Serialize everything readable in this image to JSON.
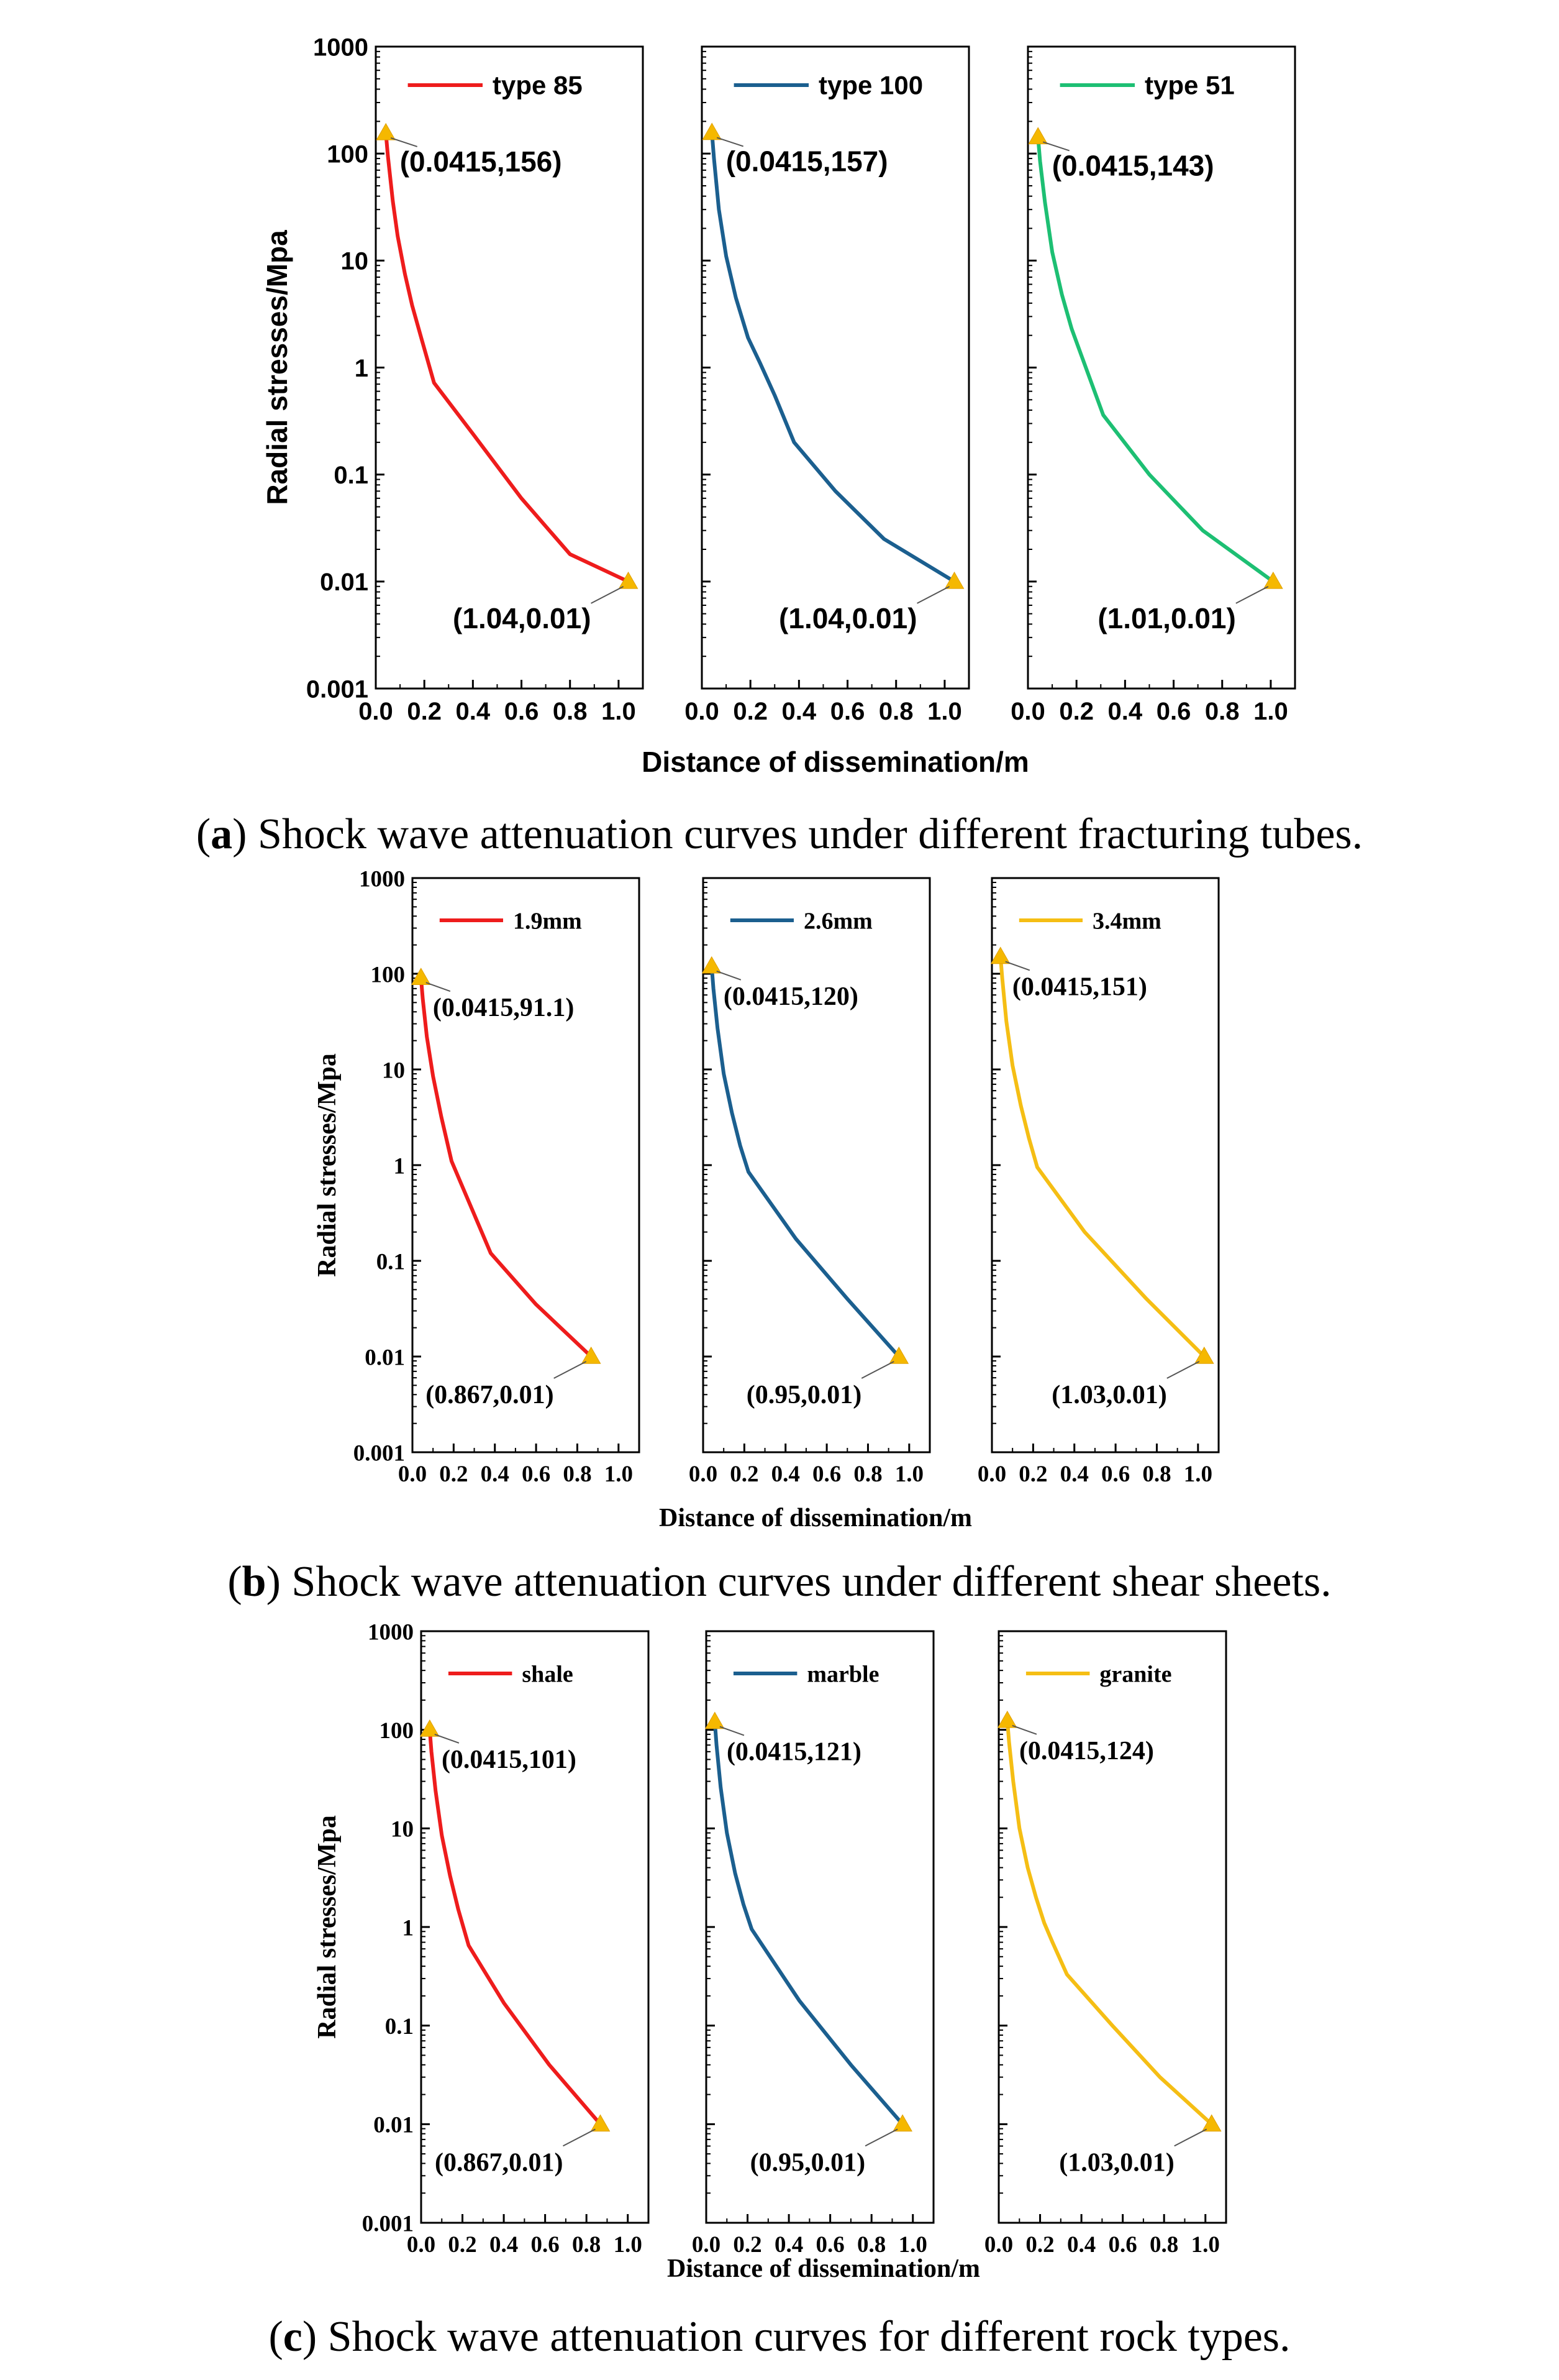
{
  "chart_data": [
    {
      "id": "a",
      "type": "line",
      "yscale": "log",
      "ylabel": "Radial stresses/Mpa",
      "xlabel": "Distance of dissemination/m",
      "xlim": [
        0,
        1.1
      ],
      "ylim": [
        0.001,
        1000
      ],
      "xticks": [
        "0.0",
        "0.2",
        "0.4",
        "0.6",
        "0.8",
        "1.0"
      ],
      "yticks": [
        "0.001",
        "0.01",
        "0.1",
        "1",
        "10",
        "100",
        "1000"
      ],
      "caption": {
        "letter": "a",
        "text": " Shock wave attenuation curves under different fracturing tubes."
      },
      "panels": [
        {
          "series_name": "type 85",
          "color": "#ee1c1c",
          "points": [
            [
              0.0415,
              156
            ],
            [
              0.05,
              95
            ],
            [
              0.07,
              36
            ],
            [
              0.09,
              17
            ],
            [
              0.12,
              7.5
            ],
            [
              0.15,
              3.8
            ],
            [
              0.19,
              1.8
            ],
            [
              0.24,
              0.72
            ],
            [
              0.4,
              0.24
            ],
            [
              0.6,
              0.06
            ],
            [
              0.8,
              0.018
            ],
            [
              1.04,
              0.01
            ]
          ],
          "start": [
            0.0415,
            156
          ],
          "end": [
            1.04,
            0.01
          ],
          "start_label": "(0.0415,156)",
          "end_label": "(1.04,0.01)"
        },
        {
          "series_name": "type 100",
          "color": "#1b5f8f",
          "points": [
            [
              0.0415,
              157
            ],
            [
              0.05,
              90
            ],
            [
              0.07,
              30
            ],
            [
              0.1,
              11
            ],
            [
              0.14,
              4.5
            ],
            [
              0.19,
              1.9
            ],
            [
              0.24,
              1.1
            ],
            [
              0.3,
              0.55
            ],
            [
              0.38,
              0.2
            ],
            [
              0.55,
              0.07
            ],
            [
              0.75,
              0.025
            ],
            [
              1.04,
              0.01
            ]
          ],
          "start": [
            0.0415,
            157
          ],
          "end": [
            1.04,
            0.01
          ],
          "start_label": "(0.0415,157)",
          "end_label": "(1.04,0.01)"
        },
        {
          "series_name": "type 51",
          "color": "#1dbf73",
          "points": [
            [
              0.0415,
              143
            ],
            [
              0.05,
              85
            ],
            [
              0.07,
              35
            ],
            [
              0.1,
              12
            ],
            [
              0.14,
              4.8
            ],
            [
              0.18,
              2.3
            ],
            [
              0.22,
              1.3
            ],
            [
              0.31,
              0.36
            ],
            [
              0.5,
              0.1
            ],
            [
              0.72,
              0.03
            ],
            [
              1.01,
              0.01
            ]
          ],
          "start": [
            0.0415,
            143
          ],
          "end": [
            1.01,
            0.01
          ],
          "start_label": "(0.0415,143)",
          "end_label": "(1.01,0.01)"
        }
      ]
    },
    {
      "id": "b",
      "type": "line",
      "yscale": "log",
      "ylabel": "Radial stresses/Mpa",
      "xlabel": "Distance of dissemination/m",
      "xlim": [
        0,
        1.1
      ],
      "ylim": [
        0.001,
        1000
      ],
      "xticks": [
        "0.0",
        "0.2",
        "0.4",
        "0.6",
        "0.8",
        "1.0"
      ],
      "yticks": [
        "0.001",
        "0.01",
        "0.1",
        "1",
        "10",
        "100",
        "1000"
      ],
      "caption": {
        "letter": "b",
        "text": " Shock wave attenuation curves under different shear sheets."
      },
      "panels": [
        {
          "series_name": "1.9mm",
          "color": "#ee1c1c",
          "points": [
            [
              0.0415,
              91.1
            ],
            [
              0.05,
              55
            ],
            [
              0.07,
              22
            ],
            [
              0.1,
              8.5
            ],
            [
              0.14,
              3.2
            ],
            [
              0.19,
              1.1
            ],
            [
              0.38,
              0.12
            ],
            [
              0.6,
              0.035
            ],
            [
              0.867,
              0.01
            ]
          ],
          "start": [
            0.0415,
            91.1
          ],
          "end": [
            0.867,
            0.01
          ],
          "start_label": "(0.0415,91.1)",
          "end_label": "(0.867,0.01)"
        },
        {
          "series_name": "2.6mm",
          "color": "#1b5f8f",
          "points": [
            [
              0.0415,
              120
            ],
            [
              0.05,
              70
            ],
            [
              0.07,
              27
            ],
            [
              0.1,
              9
            ],
            [
              0.14,
              3.5
            ],
            [
              0.18,
              1.6
            ],
            [
              0.22,
              0.85
            ],
            [
              0.45,
              0.17
            ],
            [
              0.7,
              0.04
            ],
            [
              0.95,
              0.01
            ]
          ],
          "start": [
            0.0415,
            120
          ],
          "end": [
            0.95,
            0.01
          ],
          "start_label": "(0.0415,120)",
          "end_label": "(0.95,0.01)"
        },
        {
          "series_name": "3.4mm",
          "color": "#f5be14",
          "points": [
            [
              0.0415,
              151
            ],
            [
              0.05,
              90
            ],
            [
              0.07,
              32
            ],
            [
              0.1,
              11
            ],
            [
              0.14,
              4.2
            ],
            [
              0.18,
              1.9
            ],
            [
              0.22,
              0.95
            ],
            [
              0.45,
              0.2
            ],
            [
              0.75,
              0.04
            ],
            [
              1.03,
              0.01
            ]
          ],
          "start": [
            0.0415,
            151
          ],
          "end": [
            1.03,
            0.01
          ],
          "start_label": "(0.0415,151)",
          "end_label": "(1.03,0.01)"
        }
      ]
    },
    {
      "id": "c",
      "type": "line",
      "yscale": "log",
      "ylabel": "Radial stresses/Mpa",
      "xlabel": "Distance of dissemination/m",
      "xlim": [
        0,
        1.1
      ],
      "ylim": [
        0.001,
        1000
      ],
      "xticks": [
        "0.0",
        "0.2",
        "0.4",
        "0.6",
        "0.8",
        "1.0"
      ],
      "yticks": [
        "0.001",
        "0.01",
        "0.1",
        "1",
        "10",
        "100",
        "1000"
      ],
      "caption": {
        "letter": "c",
        "text": " Shock wave attenuation curves for different rock types."
      },
      "panels": [
        {
          "series_name": "shale",
          "color": "#ee1c1c",
          "points": [
            [
              0.0415,
              101
            ],
            [
              0.05,
              60
            ],
            [
              0.07,
              24
            ],
            [
              0.1,
              8.5
            ],
            [
              0.14,
              3.3
            ],
            [
              0.18,
              1.5
            ],
            [
              0.23,
              0.65
            ],
            [
              0.4,
              0.17
            ],
            [
              0.62,
              0.04
            ],
            [
              0.867,
              0.01
            ]
          ],
          "start": [
            0.0415,
            101
          ],
          "end": [
            0.867,
            0.01
          ],
          "start_label": "(0.0415,101)",
          "end_label": "(0.867,0.01)"
        },
        {
          "series_name": "marble",
          "color": "#1b5f8f",
          "points": [
            [
              0.0415,
              121
            ],
            [
              0.05,
              70
            ],
            [
              0.07,
              26
            ],
            [
              0.1,
              9
            ],
            [
              0.14,
              3.5
            ],
            [
              0.18,
              1.7
            ],
            [
              0.22,
              0.95
            ],
            [
              0.45,
              0.18
            ],
            [
              0.7,
              0.04
            ],
            [
              0.95,
              0.01
            ]
          ],
          "start": [
            0.0415,
            121
          ],
          "end": [
            0.95,
            0.01
          ],
          "start_label": "(0.0415,121)",
          "end_label": "(0.95,0.01)"
        },
        {
          "series_name": "granite",
          "color": "#f5be14",
          "points": [
            [
              0.0415,
              124
            ],
            [
              0.05,
              75
            ],
            [
              0.07,
              30
            ],
            [
              0.1,
              10
            ],
            [
              0.14,
              4
            ],
            [
              0.18,
              2
            ],
            [
              0.22,
              1.1
            ],
            [
              0.26,
              0.7
            ],
            [
              0.33,
              0.33
            ],
            [
              0.55,
              0.1
            ],
            [
              0.78,
              0.03
            ],
            [
              1.03,
              0.01
            ]
          ],
          "start": [
            0.0415,
            124
          ],
          "end": [
            1.03,
            0.01
          ],
          "start_label": "(0.0415,124)",
          "end_label": "(1.03,0.01)"
        }
      ]
    }
  ]
}
